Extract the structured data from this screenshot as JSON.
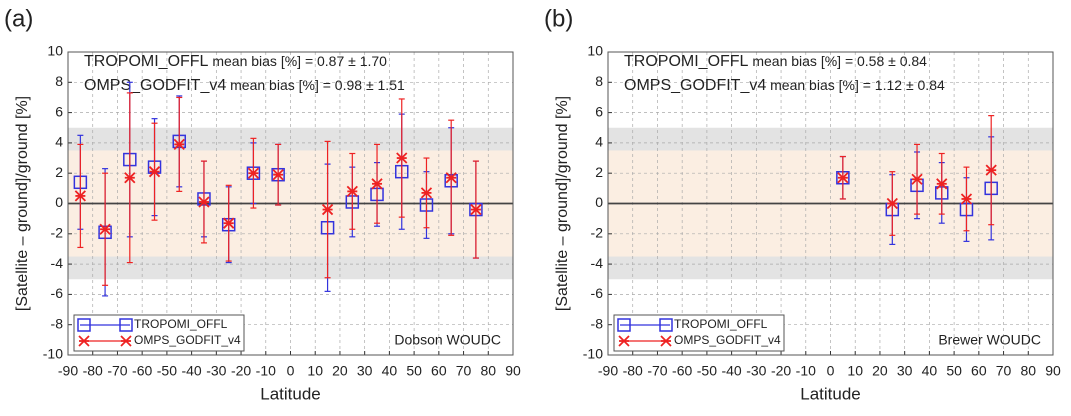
{
  "chart_data": [
    {
      "type": "errorbar",
      "panel_label": "(a)",
      "x_label": "Latitude",
      "y_label": "[Satellite – ground]/ground [%]",
      "station": "Dobson WOUDC",
      "annotations": [
        {
          "name": "TROPOMI_OFFL",
          "text": "mean bias [%] = 0.87 ± 1.70"
        },
        {
          "name": "OMPS_GODFIT_v4",
          "text": "mean bias [%] = 0.98 ± 1.51"
        }
      ],
      "x": [
        -85,
        -75,
        -65,
        -55,
        -45,
        -35,
        -25,
        -15,
        -5,
        15,
        25,
        35,
        45,
        55,
        65,
        75
      ],
      "series": [
        {
          "name": "TROPOMI_OFFL",
          "color": "#3333dd",
          "marker": "square",
          "values": [
            1.4,
            -1.9,
            2.9,
            2.4,
            4.1,
            0.3,
            -1.4,
            2.0,
            1.9,
            -1.6,
            0.1,
            0.6,
            2.1,
            -0.1,
            1.5,
            -0.4
          ],
          "errors": [
            3.1,
            4.2,
            5.1,
            3.2,
            3.0,
            2.5,
            2.5,
            2.0,
            2.0,
            4.2,
            2.3,
            2.1,
            3.8,
            2.2,
            3.5,
            3.2
          ]
        },
        {
          "name": "OMPS_GODFIT_v4",
          "color": "#ee2222",
          "marker": "asterisk",
          "values": [
            0.5,
            -1.7,
            1.7,
            2.1,
            3.9,
            0.1,
            -1.3,
            2.0,
            1.9,
            -0.4,
            0.8,
            1.3,
            3.0,
            0.7,
            1.7,
            -0.4
          ],
          "errors": [
            3.4,
            3.7,
            5.6,
            3.2,
            3.1,
            2.7,
            2.5,
            2.3,
            2.0,
            4.5,
            2.5,
            2.6,
            3.9,
            2.3,
            3.8,
            3.2
          ]
        }
      ],
      "bands": [
        {
          "from": -5,
          "to": 5,
          "color": "#e3e3e3"
        },
        {
          "from": -3.5,
          "to": 3.5,
          "color": "#fbeee2"
        }
      ],
      "xlim": [
        -90,
        90
      ],
      "xticks": [
        -90,
        -80,
        -70,
        -60,
        -50,
        -40,
        -30,
        -20,
        -10,
        0,
        10,
        20,
        30,
        40,
        50,
        60,
        70,
        80,
        90
      ],
      "ylim": [
        -10,
        10
      ],
      "yticks": [
        -10,
        -8,
        -6,
        -4,
        -2,
        0,
        2,
        4,
        6,
        8,
        10
      ],
      "grid": true,
      "legend": "lower left"
    },
    {
      "type": "errorbar",
      "panel_label": "(b)",
      "x_label": "Latitude",
      "y_label": "[Satellite – ground]/ground [%]",
      "station": "Brewer WOUDC",
      "annotations": [
        {
          "name": "TROPOMI_OFFL",
          "text": "mean bias [%] = 0.58 ± 0.84"
        },
        {
          "name": "OMPS_GODFIT_v4",
          "text": "mean bias [%] = 1.12 ± 0.84"
        }
      ],
      "x": [
        5,
        25,
        35,
        45,
        55,
        65
      ],
      "series": [
        {
          "name": "TROPOMI_OFFL",
          "color": "#3333dd",
          "marker": "square",
          "values": [
            1.7,
            -0.4,
            1.2,
            0.7,
            -0.4,
            1.0
          ],
          "errors": [
            1.4,
            2.3,
            2.2,
            2.0,
            2.1,
            3.4
          ]
        },
        {
          "name": "OMPS_GODFIT_v4",
          "color": "#ee2222",
          "marker": "asterisk",
          "values": [
            1.7,
            0.0,
            1.6,
            1.3,
            0.3,
            2.2
          ],
          "errors": [
            1.4,
            2.1,
            2.3,
            2.0,
            2.1,
            3.6
          ]
        }
      ],
      "bands": [
        {
          "from": -5,
          "to": 5,
          "color": "#e3e3e3"
        },
        {
          "from": -3.5,
          "to": 3.5,
          "color": "#fbeee2"
        }
      ],
      "xlim": [
        -90,
        90
      ],
      "xticks": [
        -90,
        -80,
        -70,
        -60,
        -50,
        -40,
        -30,
        -20,
        -10,
        0,
        10,
        20,
        30,
        40,
        50,
        60,
        70,
        80,
        90
      ],
      "ylim": [
        -10,
        10
      ],
      "yticks": [
        -10,
        -8,
        -6,
        -4,
        -2,
        0,
        2,
        4,
        6,
        8,
        10
      ],
      "grid": true,
      "legend": "lower left"
    }
  ]
}
